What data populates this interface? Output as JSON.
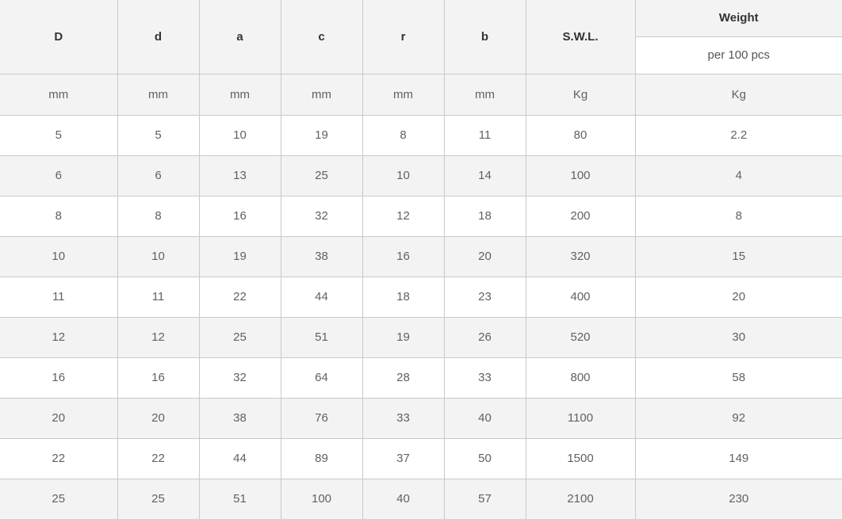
{
  "table": {
    "columns": [
      {
        "label": "D",
        "unit": "mm"
      },
      {
        "label": "d",
        "unit": "mm"
      },
      {
        "label": "a",
        "unit": "mm"
      },
      {
        "label": "c",
        "unit": "mm"
      },
      {
        "label": "r",
        "unit": "mm"
      },
      {
        "label": "b",
        "unit": "mm"
      },
      {
        "label": "S.W.L.",
        "unit": "Kg"
      },
      {
        "label": "Weight",
        "sublabel": "per 100 pcs",
        "unit": "Kg"
      }
    ],
    "rows": [
      [
        "5",
        "5",
        "10",
        "19",
        "8",
        "11",
        "80",
        "2.2"
      ],
      [
        "6",
        "6",
        "13",
        "25",
        "10",
        "14",
        "100",
        "4"
      ],
      [
        "8",
        "8",
        "16",
        "32",
        "12",
        "18",
        "200",
        "8"
      ],
      [
        "10",
        "10",
        "19",
        "38",
        "16",
        "20",
        "320",
        "15"
      ],
      [
        "11",
        "11",
        "22",
        "44",
        "18",
        "23",
        "400",
        "20"
      ],
      [
        "12",
        "12",
        "25",
        "51",
        "19",
        "26",
        "520",
        "30"
      ],
      [
        "16",
        "16",
        "32",
        "64",
        "28",
        "33",
        "800",
        "58"
      ],
      [
        "20",
        "20",
        "38",
        "76",
        "33",
        "40",
        "1100",
        "92"
      ],
      [
        "22",
        "22",
        "44",
        "89",
        "37",
        "50",
        "1500",
        "149"
      ],
      [
        "25",
        "25",
        "51",
        "100",
        "40",
        "57",
        "2100",
        "230"
      ]
    ],
    "colors": {
      "header_bg": "#f3f3f3",
      "alt_row_bg": "#f3f3f3",
      "border": "#c9c9c9",
      "header_text": "#333333",
      "body_text": "#616161"
    }
  }
}
